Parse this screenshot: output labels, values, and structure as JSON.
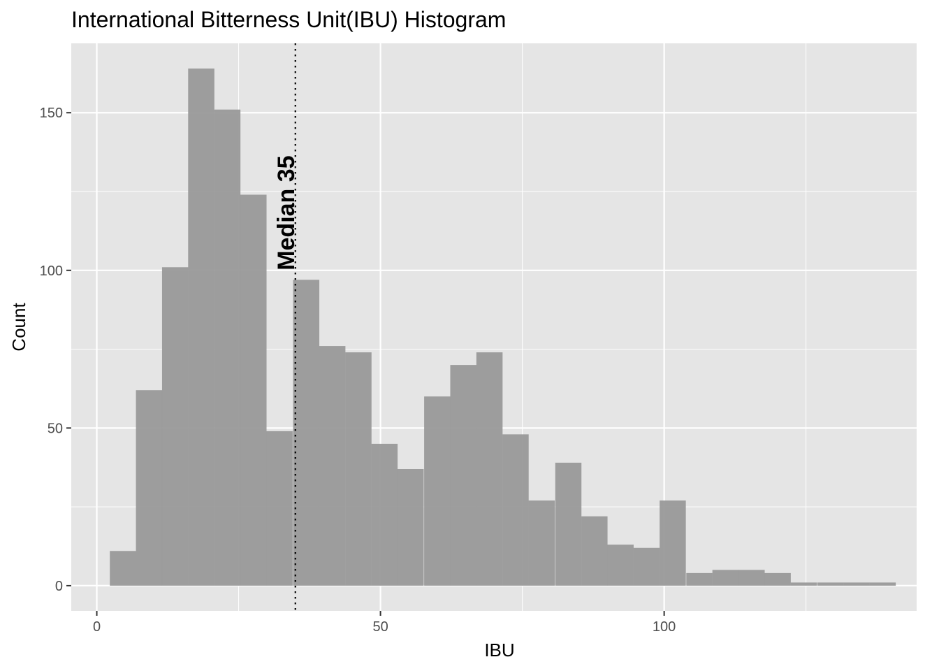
{
  "chart_data": {
    "type": "bar",
    "title": "International Bitterness Unit(IBU) Histogram",
    "xlabel": "IBU",
    "ylabel": "Count",
    "xlim": [
      -4.5,
      144.5
    ],
    "ylim": [
      -8,
      172
    ],
    "x_ticks": [
      0,
      50,
      100
    ],
    "y_ticks": [
      0,
      50,
      100,
      150
    ],
    "x_tick_labels": [
      "0",
      "50",
      "100"
    ],
    "y_tick_labels": [
      "0",
      "50",
      "100",
      "150"
    ],
    "bin_width": 4.62,
    "bins": [
      {
        "start": 2.3,
        "count": 11
      },
      {
        "start": 6.9,
        "count": 62
      },
      {
        "start": 11.5,
        "count": 101
      },
      {
        "start": 16.1,
        "count": 164
      },
      {
        "start": 20.7,
        "count": 151
      },
      {
        "start": 25.3,
        "count": 124
      },
      {
        "start": 29.9,
        "count": 49
      },
      {
        "start": 34.6,
        "count": 97
      },
      {
        "start": 39.2,
        "count": 76
      },
      {
        "start": 43.8,
        "count": 74
      },
      {
        "start": 48.4,
        "count": 45
      },
      {
        "start": 53.0,
        "count": 37
      },
      {
        "start": 57.7,
        "count": 60
      },
      {
        "start": 62.3,
        "count": 70
      },
      {
        "start": 66.9,
        "count": 74
      },
      {
        "start": 71.5,
        "count": 48
      },
      {
        "start": 76.1,
        "count": 27
      },
      {
        "start": 80.8,
        "count": 39
      },
      {
        "start": 85.4,
        "count": 22
      },
      {
        "start": 90.0,
        "count": 13
      },
      {
        "start": 94.6,
        "count": 12
      },
      {
        "start": 99.2,
        "count": 27
      },
      {
        "start": 103.9,
        "count": 4
      },
      {
        "start": 108.5,
        "count": 5
      },
      {
        "start": 113.1,
        "count": 5
      },
      {
        "start": 117.7,
        "count": 4
      },
      {
        "start": 122.3,
        "count": 1
      },
      {
        "start": 127.0,
        "count": 1
      },
      {
        "start": 131.6,
        "count": 1
      },
      {
        "start": 136.2,
        "count": 1
      }
    ],
    "median_line": {
      "x": 35,
      "label": "Median 35",
      "style": "dotted"
    },
    "colors": {
      "panel": "#e5e5e5",
      "grid": "#ffffff",
      "bar": "#999999",
      "median": "#000000"
    },
    "grid": true,
    "legend": "none"
  }
}
